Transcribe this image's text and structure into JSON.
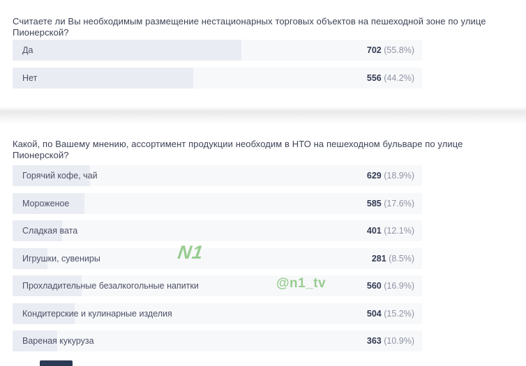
{
  "chart_data": [
    {
      "type": "bar",
      "orientation": "horizontal",
      "title": "Считаете ли Вы необходимым размещение нестационарных торговых объектов на пешеходной зоне по улице Пионерской?",
      "categories": [
        "Да",
        "Нет"
      ],
      "values": [
        702,
        556
      ],
      "percent": [
        55.8,
        44.2
      ],
      "value_label_format": "count (percent%)",
      "bar_scale": "percent of row width",
      "xlim": [
        0,
        100
      ],
      "grid": false,
      "legend": false
    },
    {
      "type": "bar",
      "orientation": "horizontal",
      "title": "Какой, по Вашему мнению, ассортимент продукции необходим в НТО на пешеходном бульваре по улице Пионерской?",
      "categories": [
        "Горячий кофе, чай",
        "Мороженое",
        "Сладкая вата",
        "Игрушки, сувениры",
        "Прохладительные безалкогольные напитки",
        "Кондитерские и кулинарные изделия",
        "Вареная кукуруза"
      ],
      "values": [
        629,
        585,
        401,
        281,
        560,
        504,
        363
      ],
      "percent": [
        18.9,
        17.6,
        12.1,
        8.5,
        16.9,
        15.2,
        10.9
      ],
      "value_label_format": "count (percent%)",
      "bar_scale": "percent of row width",
      "xlim": [
        0,
        100
      ],
      "grid": false,
      "legend": false
    }
  ],
  "watermark": {
    "logo_text": "N1",
    "handle": "@n1_tv"
  },
  "colors": {
    "watermark_green": "#8ec885",
    "bar_fill": "#eaecf3",
    "bar_track": "#f7f8fa",
    "question_text": "#3e4356",
    "count_text": "#333a51",
    "percent_text": "#8e93a2",
    "cutoff_bar": "#2c3a56"
  }
}
